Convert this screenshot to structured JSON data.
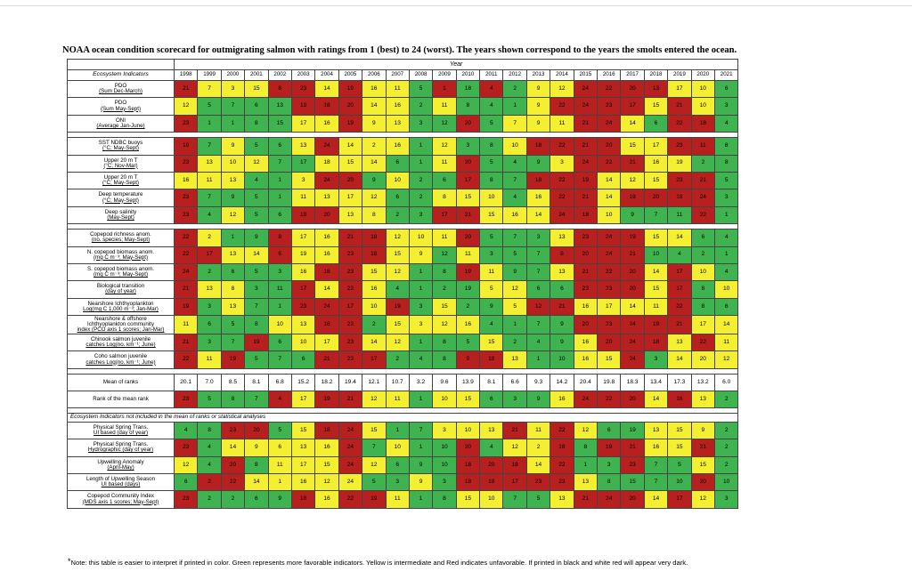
{
  "title": "NOAA ocean condition scorecard for outmigrating salmon with ratings from 1 (best) to 24 (worst).  The years shown correspond to the years the smolts entered the ocean.",
  "table": {
    "year_header": "Year",
    "indicator_header": "Ecosystem Indicators",
    "years": [
      "1998",
      "1999",
      "2000",
      "2001",
      "2002",
      "2003",
      "2004",
      "2005",
      "2006",
      "2007",
      "2008",
      "2009",
      "2010",
      "2011",
      "2012",
      "2013",
      "2014",
      "2015",
      "2016",
      "2017",
      "2018",
      "2019",
      "2020",
      "2021"
    ],
    "colors": {
      "g": "#3fb34f",
      "y": "#f4ef30",
      "r": "#b8201f"
    },
    "groups": [
      {
        "rows": [
          {
            "label": [
              "PDO",
              "(Sum Dec-March)"
            ],
            "values": [
              "21",
              "7",
              "3",
              "15",
              "8",
              "23",
              "14",
              "19",
              "16",
              "11",
              "5",
              "1",
              "18",
              "4",
              "2",
              "9",
              "12",
              "24",
              "22",
              "20",
              "13",
              "17",
              "10",
              "6"
            ],
            "colors": "ryyyrryryygrgrgyyrrrryyg"
          },
          {
            "label": [
              "PDO",
              "(Sum May-Sept)"
            ],
            "values": [
              "12",
              "5",
              "7",
              "6",
              "13",
              "19",
              "18",
              "20",
              "14",
              "16",
              "2",
              "11",
              "8",
              "4",
              "1",
              "9",
              "22",
              "24",
              "23",
              "17",
              "15",
              "21",
              "10",
              "3"
            ],
            "colors": "yggggrrryygygggyrrrryryg"
          },
          {
            "label": [
              "ONI",
              "(Average Jan-June)"
            ],
            "values": [
              "23",
              "1",
              "1",
              "8",
              "15",
              "17",
              "16",
              "19",
              "9",
              "13",
              "3",
              "12",
              "20",
              "5",
              "7",
              "9",
              "11",
              "21",
              "24",
              "14",
              "6",
              "22",
              "18",
              "4"
            ],
            "colors": "rggggyyryyggrgyyyrrygrrg"
          }
        ]
      },
      {
        "rows": [
          {
            "label": [
              "SST NDBC buoys",
              "(°C; May-Sept)"
            ],
            "values": [
              "19",
              "7",
              "9",
              "5",
              "6",
              "13",
              "24",
              "14",
              "2",
              "16",
              "1",
              "12",
              "3",
              "8",
              "10",
              "18",
              "22",
              "21",
              "20",
              "15",
              "17",
              "23",
              "11",
              "8"
            ],
            "colors": "rgyggyryyygyggyrrrryyrrg"
          },
          {
            "label": [
              "Upper 20 m T",
              "(°C; Nov-Mar)"
            ],
            "values": [
              "23",
              "13",
              "10",
              "12",
              "7",
              "17",
              "18",
              "15",
              "14",
              "6",
              "1",
              "11",
              "20",
              "5",
              "4",
              "9",
              "3",
              "24",
              "22",
              "21",
              "16",
              "19",
              "2",
              "8"
            ],
            "colors": "ryyyggyyyggyrgggyrrryygg"
          },
          {
            "label": [
              "Upper 20 m T",
              "(°C; May-Sept)"
            ],
            "values": [
              "16",
              "11",
              "13",
              "4",
              "1",
              "3",
              "24",
              "20",
              "9",
              "10",
              "2",
              "6",
              "17",
              "8",
              "7",
              "18",
              "22",
              "19",
              "14",
              "12",
              "15",
              "23",
              "21",
              "5"
            ],
            "colors": "yyyggyrrgyggrggrrryyyrrg"
          },
          {
            "label": [
              "Deep temperature",
              "(°C; May-Sept)"
            ],
            "values": [
              "23",
              "7",
              "9",
              "5",
              "1",
              "11",
              "13",
              "17",
              "12",
              "6",
              "2",
              "8",
              "15",
              "10",
              "4",
              "16",
              "22",
              "21",
              "14",
              "19",
              "20",
              "18",
              "24",
              "3"
            ],
            "colors": "rggggyyyyggyyygyrryrrrrg"
          },
          {
            "label": [
              "Deep salinity",
              "(May-Sept)"
            ],
            "values": [
              "23",
              "4",
              "12",
              "5",
              "6",
              "19",
              "20",
              "13",
              "8",
              "2",
              "3",
              "17",
              "21",
              "15",
              "16",
              "14",
              "24",
              "18",
              "10",
              "9",
              "7",
              "11",
              "22",
              "1"
            ],
            "colors": "rgyggrryyggrryyyrrygggrg"
          }
        ]
      },
      {
        "rows": [
          {
            "label": [
              "Copepod richness anom.",
              "(no. species; May-Sept)"
            ],
            "values": [
              "22",
              "2",
              "1",
              "9",
              "8",
              "17",
              "16",
              "21",
              "18",
              "12",
              "10",
              "11",
              "20",
              "5",
              "7",
              "3",
              "13",
              "23",
              "24",
              "19",
              "15",
              "14",
              "6",
              "4"
            ],
            "colors": "ryggryyrryyyrgggyrrryygg"
          },
          {
            "label": [
              "N. copepod biomass anom.",
              "(mg C m⁻³; May-Sept)"
            ],
            "values": [
              "22",
              "17",
              "13",
              "14",
              "6",
              "19",
              "16",
              "23",
              "18",
              "15",
              "9",
              "12",
              "11",
              "3",
              "5",
              "7",
              "8",
              "20",
              "24",
              "21",
              "10",
              "4",
              "2",
              "1"
            ],
            "colors": "rryyryyrryygygggrrrrgggg"
          },
          {
            "label": [
              "S. copepod biomass anom.",
              "(mg C m⁻³; May-Sept)"
            ],
            "values": [
              "24",
              "2",
              "6",
              "5",
              "3",
              "16",
              "18",
              "23",
              "15",
              "12",
              "1",
              "8",
              "19",
              "11",
              "9",
              "7",
              "13",
              "21",
              "22",
              "20",
              "14",
              "17",
              "10",
              "4"
            ],
            "colors": "rggggyrryyggryggyrrryryg"
          },
          {
            "label": [
              "Biological transition",
              "(day of year)"
            ],
            "values": [
              "21",
              "13",
              "8",
              "3",
              "11",
              "17",
              "14",
              "22",
              "16",
              "4",
              "1",
              "2",
              "19",
              "5",
              "12",
              "6",
              "6",
              "23",
              "23",
              "20",
              "15",
              "17",
              "8",
              "10"
            ],
            "colors": "ryyggryryggggyyggrrryrgy"
          },
          {
            "label": [
              "Nearshore Ichthyoplankton",
              "Log(mg C 1,000 m⁻³; Jan-Mar)"
            ],
            "values": [
              "19",
              "3",
              "13",
              "7",
              "1",
              "23",
              "24",
              "17",
              "10",
              "19",
              "3",
              "15",
              "2",
              "9",
              "5",
              "12",
              "21",
              "16",
              "17",
              "14",
              "11",
              "22",
              "8",
              "6"
            ],
            "colors": "rgyggrrryrgyggyrryyyyrgg"
          },
          {
            "label": [
              "Nearshore & offshore",
              "Ichthyoplankton community",
              "index (PCO axis 1 scores; Jan-Mar)"
            ],
            "values": [
              "11",
              "6",
              "5",
              "8",
              "10",
              "13",
              "18",
              "22",
              "2",
              "15",
              "3",
              "12",
              "16",
              "4",
              "1",
              "7",
              "9",
              "20",
              "23",
              "24",
              "19",
              "21",
              "17",
              "14"
            ],
            "colors": "ygggyyrrgyyyyggggrrrrryy"
          },
          {
            "label": [
              "Chinook salmon juvenile",
              "catches Log(no. km⁻¹; June)"
            ],
            "values": [
              "21",
              "3",
              "7",
              "19",
              "6",
              "10",
              "17",
              "23",
              "14",
              "12",
              "1",
              "8",
              "5",
              "15",
              "2",
              "4",
              "9",
              "16",
              "20",
              "24",
              "18",
              "13",
              "22",
              "11"
            ],
            "colors": "rggrgyyryygggygggyrrryry"
          },
          {
            "label": [
              "Coho salmon juvenile",
              "catches Log(no. km⁻¹; June)"
            ],
            "values": [
              "22",
              "11",
              "19",
              "5",
              "7",
              "6",
              "21",
              "23",
              "17",
              "2",
              "4",
              "8",
              "9",
              "18",
              "13",
              "1",
              "10",
              "16",
              "15",
              "24",
              "3",
              "14",
              "20",
              "12"
            ],
            "colors": "ryrgggrrrgggrryggyyrgyyy"
          }
        ]
      }
    ],
    "mean_label": "Mean of ranks",
    "mean_values": [
      "20.1",
      "7.0",
      "8.5",
      "8.1",
      "6.8",
      "15.2",
      "18.2",
      "19.4",
      "12.1",
      "10.7",
      "3.2",
      "9.6",
      "13.9",
      "8.1",
      "6.6",
      "9.3",
      "14.2",
      "20.4",
      "19.8",
      "18.3",
      "13.4",
      "17.3",
      "13.2",
      "6.0"
    ],
    "rank_label": "Rank of the mean rank",
    "rank_values": [
      "23",
      "5",
      "8",
      "7",
      "4",
      "17",
      "19",
      "21",
      "12",
      "11",
      "1",
      "10",
      "15",
      "6",
      "3",
      "9",
      "16",
      "24",
      "22",
      "20",
      "14",
      "18",
      "13",
      "2"
    ],
    "rank_colors": "rgggryrryygyygggyrrryryg",
    "excluded_header": "Ecosystem Indicators not included in the mean of ranks or statistical analyses",
    "excluded_rows": [
      {
        "label": [
          "Physical Spring Trans.",
          "UI based (day of year)"
        ],
        "values": [
          "4",
          "8",
          "23",
          "20",
          "5",
          "15",
          "18",
          "24",
          "15",
          "1",
          "7",
          "3",
          "10",
          "13",
          "21",
          "11",
          "22",
          "12",
          "6",
          "19",
          "13",
          "15",
          "9",
          "2"
        ],
        "colors": "ggrrgyrryggyyyryryggyyyg"
      },
      {
        "label": [
          "Physical Spring Trans.",
          "Hydrographic (day of year)"
        ],
        "values": [
          "23",
          "4",
          "14",
          "9",
          "6",
          "13",
          "16",
          "24",
          "7",
          "10",
          "1",
          "10",
          "20",
          "4",
          "12",
          "2",
          "18",
          "8",
          "19",
          "21",
          "16",
          "15",
          "21",
          "2"
        ],
        "colors": "rgyyyyyrgyggrgyyrgrryyrg"
      },
      {
        "label": [
          "Upwelling Anomaly",
          "(April-May)"
        ],
        "values": [
          "12",
          "4",
          "20",
          "8",
          "11",
          "17",
          "15",
          "24",
          "12",
          "6",
          "9",
          "10",
          "18",
          "20",
          "18",
          "14",
          "22",
          "1",
          "3",
          "23",
          "7",
          "5",
          "15",
          "2"
        ],
        "colors": "ygrgyyyrygggrrryrggrggyg"
      },
      {
        "label": [
          "Length of Upwelling Season",
          "UI based (days)"
        ],
        "values": [
          "6",
          "2",
          "22",
          "14",
          "1",
          "16",
          "12",
          "24",
          "5",
          "3",
          "9",
          "3",
          "18",
          "18",
          "17",
          "23",
          "23",
          "13",
          "8",
          "15",
          "7",
          "10",
          "20",
          "10"
        ],
        "colors": "grryyyyyggygrrrrryggggrg"
      },
      {
        "label": [
          "Copepod Community Index",
          "(MDS axis 1 scores; May-Sept)"
        ],
        "values": [
          "23",
          "2",
          "2",
          "6",
          "9",
          "18",
          "16",
          "22",
          "19",
          "11",
          "1",
          "8",
          "15",
          "10",
          "7",
          "5",
          "13",
          "21",
          "24",
          "20",
          "14",
          "17",
          "12",
          "3"
        ],
        "colors": "rggggryrryggyyggyrrryryg"
      }
    ]
  },
  "note": {
    "marker": "*",
    "text": "Note: this table is easier to interpret if printed in color. Green represents more favorable indicators. Yellow is intermediate and Red indicates unfavorable. If printed in black and white red will appear very dark."
  }
}
